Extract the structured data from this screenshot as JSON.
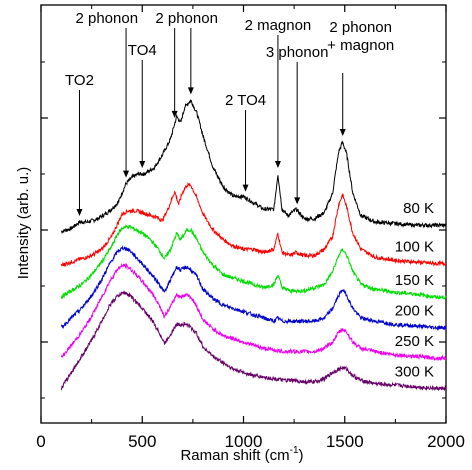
{
  "chart_data": {
    "type": "line",
    "title": "",
    "xlabel": "Raman shift (cm⁻¹)",
    "xlabel_main": "Raman shift (cm",
    "xlabel_sup": "-1",
    "xlabel_tail": ")",
    "ylabel": "Intensity (arb. u.)",
    "xlim": [
      0,
      2000
    ],
    "x_ticks": [
      0,
      500,
      1000,
      1500,
      2000
    ],
    "x_tick_labels": [
      "0",
      "500",
      "1000",
      "1500",
      "2000"
    ],
    "y_ticks_labeled": false,
    "grid": false,
    "legend": "none (temperature labels placed at right end of each trace)",
    "offset_note": "traces vertically offset",
    "series": [
      {
        "name": "80 K",
        "color": "#000000",
        "baseline": 5.2,
        "x": [
          100,
          150,
          190,
          230,
          280,
          330,
          380,
          420,
          450,
          480,
          510,
          560,
          600,
          640,
          670,
          690,
          710,
          740,
          770,
          800,
          850,
          900,
          950,
          1000,
          1050,
          1100,
          1150,
          1170,
          1190,
          1220,
          1260,
          1300,
          1350,
          1400,
          1440,
          1470,
          1490,
          1510,
          1540,
          1580,
          1650,
          1750,
          1850,
          1950,
          2000
        ],
        "y": [
          0.0,
          0.1,
          0.3,
          0.3,
          0.4,
          0.6,
          0.9,
          1.5,
          1.7,
          1.8,
          1.8,
          2.0,
          2.4,
          2.9,
          3.6,
          3.4,
          3.9,
          4.1,
          3.7,
          3.0,
          2.0,
          1.4,
          1.1,
          1.1,
          0.9,
          0.7,
          0.7,
          1.8,
          0.7,
          0.5,
          0.7,
          0.4,
          0.4,
          0.6,
          1.2,
          2.5,
          2.8,
          2.4,
          1.2,
          0.5,
          0.3,
          0.25,
          0.2,
          0.2,
          0.2
        ]
      },
      {
        "name": "100 K",
        "color": "#ff0000",
        "baseline": 4.15,
        "x": [
          100,
          150,
          200,
          250,
          300,
          350,
          400,
          430,
          470,
          520,
          570,
          600,
          630,
          660,
          680,
          700,
          720,
          740,
          770,
          800,
          850,
          900,
          950,
          1000,
          1050,
          1100,
          1150,
          1170,
          1190,
          1230,
          1260,
          1300,
          1350,
          1400,
          1440,
          1470,
          1490,
          1510,
          1540,
          1580,
          1650,
          1750,
          1850,
          1950,
          2000
        ],
        "y": [
          0.0,
          0.1,
          0.2,
          0.3,
          0.5,
          0.9,
          1.6,
          1.7,
          1.7,
          1.6,
          1.5,
          1.4,
          1.8,
          2.3,
          1.9,
          2.3,
          2.5,
          2.5,
          2.1,
          1.6,
          1.1,
          0.8,
          0.6,
          0.5,
          0.5,
          0.4,
          0.5,
          1.0,
          0.4,
          0.3,
          0.4,
          0.3,
          0.3,
          0.5,
          0.9,
          1.9,
          2.2,
          1.8,
          1.0,
          0.5,
          0.25,
          0.15,
          0.1,
          0.05,
          0.05
        ]
      },
      {
        "name": "150 K",
        "color": "#00dd00",
        "baseline": 3.15,
        "x": [
          100,
          150,
          200,
          250,
          300,
          350,
          380,
          410,
          440,
          470,
          500,
          540,
          580,
          610,
          640,
          670,
          690,
          720,
          740,
          770,
          800,
          850,
          900,
          950,
          1000,
          1050,
          1100,
          1150,
          1170,
          1190,
          1230,
          1300,
          1350,
          1400,
          1440,
          1470,
          1490,
          1510,
          1540,
          1580,
          1650,
          1750,
          1850,
          1950,
          2000
        ],
        "y": [
          0.0,
          0.2,
          0.4,
          0.7,
          1.1,
          1.6,
          2.0,
          2.2,
          2.2,
          2.1,
          2.0,
          1.8,
          1.5,
          1.2,
          1.5,
          2.0,
          1.8,
          2.1,
          2.1,
          1.8,
          1.4,
          1.0,
          0.7,
          0.6,
          0.5,
          0.4,
          0.3,
          0.4,
          0.7,
          0.3,
          0.2,
          0.2,
          0.3,
          0.4,
          0.8,
          1.3,
          1.5,
          1.3,
          0.8,
          0.4,
          0.25,
          0.15,
          0.1,
          0.0,
          0.0
        ]
      },
      {
        "name": "200 K",
        "color": "#0000cc",
        "baseline": 2.2,
        "x": [
          100,
          150,
          200,
          250,
          300,
          340,
          380,
          410,
          440,
          470,
          500,
          540,
          580,
          610,
          640,
          670,
          690,
          720,
          740,
          770,
          800,
          850,
          900,
          950,
          1000,
          1050,
          1100,
          1150,
          1170,
          1190,
          1230,
          1300,
          1350,
          1400,
          1440,
          1470,
          1490,
          1510,
          1540,
          1580,
          1650,
          1750,
          1850,
          1950,
          2000
        ],
        "y": [
          0.0,
          0.3,
          0.6,
          1.0,
          1.5,
          2.0,
          2.4,
          2.5,
          2.4,
          2.2,
          2.0,
          1.7,
          1.4,
          1.1,
          1.5,
          1.9,
          1.8,
          1.9,
          1.8,
          1.6,
          1.2,
          0.9,
          0.7,
          0.6,
          0.5,
          0.4,
          0.3,
          0.2,
          0.3,
          0.2,
          0.2,
          0.2,
          0.2,
          0.3,
          0.6,
          1.0,
          1.2,
          1.0,
          0.6,
          0.3,
          0.2,
          0.1,
          0.05,
          0.0,
          0.0
        ]
      },
      {
        "name": "250 K",
        "color": "#ee00ee",
        "baseline": 1.25,
        "x": [
          100,
          150,
          200,
          250,
          300,
          340,
          380,
          410,
          440,
          470,
          500,
          540,
          580,
          610,
          640,
          670,
          690,
          720,
          740,
          770,
          800,
          850,
          900,
          950,
          1000,
          1050,
          1100,
          1150,
          1200,
          1250,
          1300,
          1350,
          1400,
          1440,
          1470,
          1490,
          1510,
          1540,
          1580,
          1650,
          1750,
          1850,
          1950,
          2000
        ],
        "y": [
          0.0,
          0.4,
          0.8,
          1.3,
          1.9,
          2.4,
          2.8,
          2.9,
          2.8,
          2.6,
          2.4,
          2.1,
          1.7,
          1.3,
          1.6,
          2.0,
          1.9,
          2.0,
          1.9,
          1.6,
          1.2,
          0.9,
          0.7,
          0.6,
          0.5,
          0.4,
          0.3,
          0.25,
          0.2,
          0.2,
          0.2,
          0.2,
          0.3,
          0.5,
          0.8,
          0.9,
          0.8,
          0.5,
          0.3,
          0.2,
          0.1,
          0.05,
          0.0,
          0.0
        ]
      },
      {
        "name": "300 K",
        "color": "#660066",
        "baseline": 0.3,
        "x": [
          100,
          150,
          200,
          250,
          300,
          340,
          380,
          410,
          440,
          470,
          500,
          540,
          580,
          610,
          640,
          670,
          690,
          720,
          740,
          770,
          800,
          850,
          900,
          950,
          1000,
          1050,
          1100,
          1150,
          1200,
          1250,
          1300,
          1350,
          1400,
          1440,
          1470,
          1490,
          1510,
          1540,
          1580,
          1650,
          1750,
          1850,
          1950,
          2000
        ],
        "y": [
          0.0,
          0.5,
          1.0,
          1.5,
          2.1,
          2.6,
          2.9,
          3.0,
          2.9,
          2.7,
          2.5,
          2.2,
          1.8,
          1.4,
          1.7,
          2.0,
          2.0,
          2.0,
          1.9,
          1.7,
          1.3,
          1.0,
          0.8,
          0.6,
          0.5,
          0.4,
          0.35,
          0.3,
          0.25,
          0.25,
          0.2,
          0.2,
          0.3,
          0.5,
          0.6,
          0.65,
          0.6,
          0.4,
          0.25,
          0.15,
          0.1,
          0.05,
          0.0,
          0.0
        ]
      }
    ],
    "annotations": [
      {
        "label": "TO2",
        "x": 190,
        "lines": [
          "TO2"
        ]
      },
      {
        "label": "2 phonon",
        "x": 420,
        "lines": [
          "2 phonon"
        ]
      },
      {
        "label": "TO4",
        "x": 500,
        "lines": [
          "TO4"
        ]
      },
      {
        "label": "2 phonon",
        "x": 660,
        "lines": [
          "2 phonon"
        ]
      },
      {
        "label": "2 phonon",
        "x": 740,
        "lines": [
          ""
        ]
      },
      {
        "label": "2 TO4",
        "x": 1010,
        "lines": [
          "2 TO4"
        ]
      },
      {
        "label": "2 magnon",
        "x": 1170,
        "lines": [
          "2 magnon"
        ]
      },
      {
        "label": "3 phonon",
        "x": 1265,
        "lines": [
          "3 phonon"
        ]
      },
      {
        "label": "2 phonon + magnon",
        "x": 1490,
        "lines": [
          "2 phonon",
          "+ magnon"
        ]
      }
    ]
  }
}
